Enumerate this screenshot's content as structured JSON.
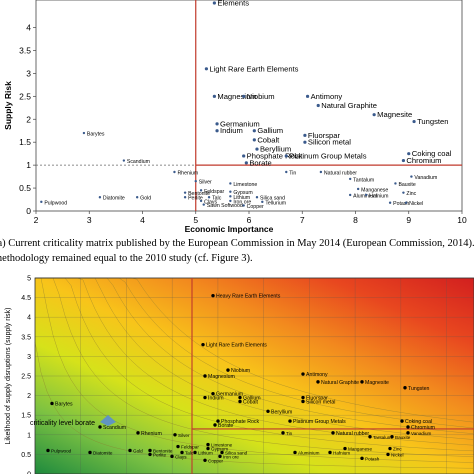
{
  "caption": {
    "line1": "(a) Current criticality matrix published by the European Commission in May 2014 (European Commission, 2014). The",
    "line2": "methodology remained equal to the 2010 study (cf. Figure 3)."
  },
  "chart_data": [
    {
      "type": "scatter",
      "xlabel": "Economic Importance",
      "ylabel": "Supply Risk",
      "xlim": [
        2,
        10
      ],
      "ylim": [
        0,
        4.6
      ],
      "xticks": [
        2,
        3,
        4,
        5,
        6,
        7,
        8,
        9,
        10
      ],
      "yticks": [
        0,
        0.5,
        1,
        1.5,
        2,
        2.5,
        3,
        3.5,
        4
      ],
      "threshold_x": 5,
      "threshold_y": 1,
      "threshold_color": "#c0392b",
      "point_color": "#3a5a8c",
      "points": [
        {
          "name": "Heavy Rare Earth Elements",
          "label": "Elements",
          "x": 5.35,
          "y": 4.6
        },
        {
          "name": "Light Rare Earth Elements",
          "x": 5.2,
          "y": 3.1
        },
        {
          "name": "Magnesium",
          "x": 5.35,
          "y": 2.5
        },
        {
          "name": "Niobium",
          "x": 5.9,
          "y": 2.5
        },
        {
          "name": "Antimony",
          "x": 7.1,
          "y": 2.5
        },
        {
          "name": "Natural Graphite",
          "x": 7.3,
          "y": 2.3
        },
        {
          "name": "Magnesite",
          "x": 8.35,
          "y": 2.1
        },
        {
          "name": "Tungsten",
          "x": 9.1,
          "y": 1.95
        },
        {
          "name": "Germanium",
          "x": 5.4,
          "y": 1.9
        },
        {
          "name": "Indium",
          "x": 5.4,
          "y": 1.75
        },
        {
          "name": "Gallium",
          "x": 6.1,
          "y": 1.75
        },
        {
          "name": "Fluorspar",
          "x": 7.05,
          "y": 1.65
        },
        {
          "name": "Cobalt",
          "x": 6.1,
          "y": 1.55
        },
        {
          "name": "Silicon metal",
          "x": 7.05,
          "y": 1.5
        },
        {
          "name": "Beryllium",
          "x": 6.15,
          "y": 1.35
        },
        {
          "name": "Phosphate Rock",
          "x": 5.9,
          "y": 1.2
        },
        {
          "name": "Platinum Group Metals",
          "x": 6.7,
          "y": 1.2
        },
        {
          "name": "Borate",
          "x": 5.95,
          "y": 1.05
        },
        {
          "name": "Coking coal",
          "x": 9.0,
          "y": 1.25
        },
        {
          "name": "Chromium",
          "x": 8.9,
          "y": 1.1
        },
        {
          "name": "Barytes",
          "x": 2.9,
          "y": 1.7
        },
        {
          "name": "Scandium",
          "x": 3.65,
          "y": 1.1
        },
        {
          "name": "Rhenium",
          "x": 4.6,
          "y": 0.85
        },
        {
          "name": "Silver",
          "x": 5.0,
          "y": 0.65
        },
        {
          "name": "Tin",
          "x": 6.7,
          "y": 0.85
        },
        {
          "name": "Natural rubber",
          "x": 7.35,
          "y": 0.85
        },
        {
          "name": "Tantalum",
          "x": 7.9,
          "y": 0.7
        },
        {
          "name": "Vanadium",
          "x": 9.05,
          "y": 0.75
        },
        {
          "name": "Bauxite",
          "x": 8.75,
          "y": 0.6
        },
        {
          "name": "Limestone",
          "x": 5.65,
          "y": 0.6
        },
        {
          "name": "Manganese",
          "x": 8.05,
          "y": 0.48
        },
        {
          "name": "Zinc",
          "x": 8.9,
          "y": 0.4
        },
        {
          "name": "Feldspar",
          "x": 5.1,
          "y": 0.45
        },
        {
          "name": "Gypsum",
          "x": 5.65,
          "y": 0.42
        },
        {
          "name": "Lithium",
          "x": 5.65,
          "y": 0.32
        },
        {
          "name": "Bentonite",
          "x": 4.8,
          "y": 0.4
        },
        {
          "name": "Perlite",
          "x": 4.8,
          "y": 0.3
        },
        {
          "name": "Talc",
          "x": 5.25,
          "y": 0.3
        },
        {
          "name": "Clays",
          "x": 5.1,
          "y": 0.22
        },
        {
          "name": "Silica sand",
          "x": 6.15,
          "y": 0.3
        },
        {
          "name": "Aluminium",
          "x": 7.9,
          "y": 0.35
        },
        {
          "name": "Hafnium",
          "x": 8.2,
          "y": 0.35
        },
        {
          "name": "Diatomite",
          "x": 3.2,
          "y": 0.3
        },
        {
          "name": "Gold",
          "x": 3.9,
          "y": 0.3
        },
        {
          "name": "Pulpwood",
          "x": 2.1,
          "y": 0.2
        },
        {
          "name": "Iron ore",
          "x": 5.65,
          "y": 0.22
        },
        {
          "name": "Sawn Softwood",
          "x": 5.15,
          "y": 0.14
        },
        {
          "name": "Tellurium",
          "x": 6.25,
          "y": 0.2
        },
        {
          "name": "Copper",
          "x": 5.9,
          "y": 0.12
        },
        {
          "name": "Potash",
          "x": 8.65,
          "y": 0.18
        },
        {
          "name": "Nickel",
          "x": 8.95,
          "y": 0.18
        }
      ]
    },
    {
      "type": "scatter",
      "xlabel": "",
      "ylabel": "Likelihood of supply disruptions (supply risk)",
      "ylim": [
        0,
        5
      ],
      "yticks": [
        0,
        0.5,
        1,
        1.5,
        2,
        2.5,
        3,
        3.5,
        4,
        4.5,
        5
      ],
      "annotation": "criticality level borate",
      "point_color": "#000000",
      "gradient_colors": [
        "#1e8a3e",
        "#7cc242",
        "#d6e21a",
        "#f8c41a",
        "#f28a1e",
        "#e8471f",
        "#d21f1f"
      ],
      "points": [
        {
          "name": "Heavy Rare Earth Elements",
          "y": 4.55
        },
        {
          "name": "Light Rare Earth Elements",
          "y": 3.3
        },
        {
          "name": "Niobium",
          "y": 2.65
        },
        {
          "name": "Magnesium",
          "y": 2.5
        },
        {
          "name": "Antimony",
          "y": 2.55
        },
        {
          "name": "Natural Graphite",
          "y": 2.35
        },
        {
          "name": "Magnesite",
          "y": 2.35
        },
        {
          "name": "Tungsten",
          "y": 2.2
        },
        {
          "name": "Germanium",
          "y": 2.05
        },
        {
          "name": "Indium",
          "y": 1.95
        },
        {
          "name": "Gallium",
          "y": 1.95
        },
        {
          "name": "Fluorspar",
          "y": 1.95
        },
        {
          "name": "Cobalt",
          "y": 1.85
        },
        {
          "name": "Silicon metal",
          "y": 1.85
        },
        {
          "name": "Beryllium",
          "y": 1.6
        },
        {
          "name": "Barytes",
          "y": 1.8
        },
        {
          "name": "Scandium",
          "y": 1.2
        },
        {
          "name": "Phosphate Rock",
          "y": 1.35
        },
        {
          "name": "Borate",
          "y": 1.25
        },
        {
          "name": "Platinum Group Metals",
          "y": 1.35
        },
        {
          "name": "Coking coal",
          "y": 1.35
        },
        {
          "name": "Chromium",
          "y": 1.2
        },
        {
          "name": "Rhenium",
          "y": 1.05
        },
        {
          "name": "Silver",
          "y": 1.0
        },
        {
          "name": "Tin",
          "y": 1.05
        },
        {
          "name": "Natural rubber",
          "y": 1.05
        },
        {
          "name": "Tantalum",
          "y": 0.95
        },
        {
          "name": "Vanadium",
          "y": 1.05
        },
        {
          "name": "Bauxite",
          "y": 0.95
        },
        {
          "name": "Pulpwood",
          "y": 0.6
        },
        {
          "name": "Diatomite",
          "y": 0.55
        },
        {
          "name": "Gold",
          "y": 0.6
        },
        {
          "name": "Bentonite",
          "y": 0.6
        },
        {
          "name": "Perlite",
          "y": 0.5
        },
        {
          "name": "Feldspar",
          "y": 0.7
        },
        {
          "name": "Limestone",
          "y": 0.75
        },
        {
          "name": "Gypsum",
          "y": 0.65
        },
        {
          "name": "Lithium",
          "y": 0.55
        },
        {
          "name": "Talc",
          "y": 0.55
        },
        {
          "name": "Clays",
          "y": 0.45
        },
        {
          "name": "Silica sand",
          "y": 0.55
        },
        {
          "name": "Iron ore",
          "y": 0.45
        },
        {
          "name": "Copper",
          "y": 0.35
        },
        {
          "name": "Manganese",
          "y": 0.65
        },
        {
          "name": "Aluminium",
          "y": 0.55
        },
        {
          "name": "Hafnium",
          "y": 0.55
        },
        {
          "name": "Zinc",
          "y": 0.65
        },
        {
          "name": "Potash",
          "y": 0.4
        },
        {
          "name": "Nickel",
          "y": 0.5
        }
      ]
    }
  ]
}
